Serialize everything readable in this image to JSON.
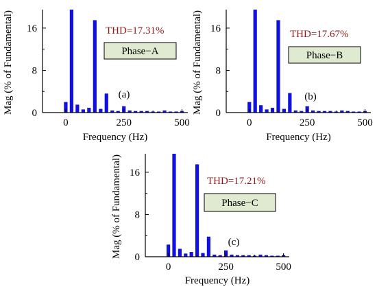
{
  "colors": {
    "bar": "#1010e0",
    "thd_text": "#8b1a1a",
    "phase_box_fill": "#dfead0",
    "axis": "#000000",
    "ghost_text": "#d9a8d9"
  },
  "chart_data": [
    {
      "type": "bar",
      "panel_tag": "(a)",
      "phase_label": "Phase−A",
      "thd_label": "THD=17.31%",
      "xlabel": "Frequency (Hz)",
      "ylabel": "Mag (% of Fundamental)",
      "xlim": [
        -100,
        525
      ],
      "ylim": [
        0,
        19.5
      ],
      "xticks": [
        0,
        250,
        500
      ],
      "yticks": [
        0,
        8,
        16
      ],
      "grid": false,
      "x": [
        0,
        25,
        50,
        75,
        100,
        125,
        150,
        175,
        200,
        225,
        250,
        275,
        300,
        325,
        350,
        375,
        400,
        425,
        450,
        475,
        500
      ],
      "values": [
        2.0,
        19.5,
        1.5,
        0.6,
        0.9,
        17.5,
        0.7,
        3.6,
        0.4,
        0.3,
        1.2,
        0.4,
        0.3,
        0.3,
        0.3,
        0.2,
        0.2,
        0.4,
        0.2,
        0.2,
        0.3
      ]
    },
    {
      "type": "bar",
      "panel_tag": "(b)",
      "phase_label": "Phase−B",
      "thd_label": "THD=17.67%",
      "xlabel": "Frequency (Hz)",
      "ylabel": "Mag (% of Fundamental)",
      "xlim": [
        -100,
        525
      ],
      "ylim": [
        0,
        19.5
      ],
      "xticks": [
        0,
        250,
        500
      ],
      "yticks": [
        0,
        8,
        16
      ],
      "grid": false,
      "x": [
        0,
        25,
        50,
        75,
        100,
        125,
        150,
        175,
        200,
        225,
        250,
        275,
        300,
        325,
        350,
        375,
        400,
        425,
        450,
        475,
        500
      ],
      "values": [
        2.0,
        19.5,
        1.4,
        0.6,
        0.9,
        17.5,
        0.7,
        3.7,
        0.4,
        0.3,
        1.2,
        0.4,
        0.3,
        0.3,
        0.3,
        0.2,
        0.4,
        0.3,
        0.2,
        0.2,
        0.3
      ]
    },
    {
      "type": "bar",
      "panel_tag": "(c)",
      "phase_label": "Phase−C",
      "thd_label": "THD=17.21%",
      "xlabel": "Frequency (Hz)",
      "ylabel": "Mag (% of Fundamental)",
      "xlim": [
        -100,
        525
      ],
      "ylim": [
        0,
        19.5
      ],
      "xticks": [
        0,
        250,
        500
      ],
      "yticks": [
        0,
        8,
        16
      ],
      "grid": false,
      "x": [
        0,
        25,
        50,
        75,
        100,
        125,
        150,
        175,
        200,
        225,
        250,
        275,
        300,
        325,
        350,
        375,
        400,
        425,
        450,
        475,
        500
      ],
      "values": [
        2.3,
        19.5,
        1.5,
        0.6,
        0.9,
        17.5,
        0.7,
        3.8,
        0.4,
        0.3,
        1.2,
        0.4,
        0.3,
        0.3,
        0.3,
        0.2,
        0.4,
        0.3,
        0.2,
        0.2,
        0.3
      ]
    }
  ]
}
